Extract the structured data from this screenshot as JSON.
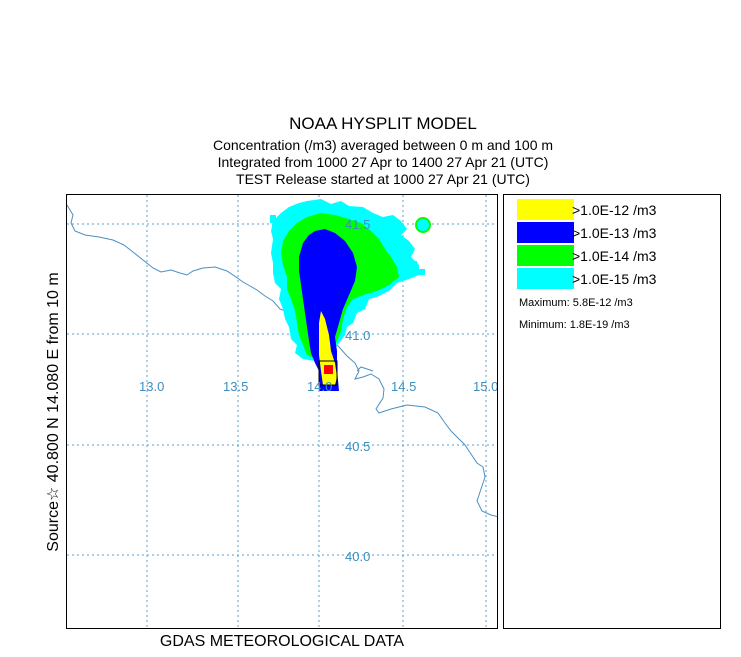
{
  "header": {
    "title": "NOAA HYSPLIT MODEL",
    "line1": "Concentration  (/m3) averaged between     0 m and   100 m",
    "line2": "Integrated from 1000 27 Apr to 1400 27 Apr 21 (UTC)",
    "line3": "TEST Release started at 1000 27 Apr 21 (UTC)"
  },
  "map": {
    "source_label": "Source☆  40.800  N  14.080  E   from   10 m",
    "footer": "GDAS METEOROLOGICAL DATA",
    "lon_labels": [
      "13.0",
      "13.5",
      "14.0",
      "14.5",
      "15.0"
    ],
    "lat_labels": [
      "41.5",
      "41.0",
      "40.5",
      "40.0"
    ],
    "colors": {
      "grid": "#5aa0cc",
      "coast": "#4a8fc2",
      "level1": "#ffff00",
      "level2": "#0000ff",
      "level3": "#00ff00",
      "level4": "#00ffff",
      "source_marker": "#ff0000"
    }
  },
  "legend": {
    "items": [
      {
        "label": ">1.0E-12 /m3",
        "color": "#ffff00"
      },
      {
        "label": ">1.0E-13 /m3",
        "color": "#0000ff"
      },
      {
        "label": ">1.0E-14 /m3",
        "color": "#00ff00"
      },
      {
        "label": ">1.0E-15 /m3",
        "color": "#00ffff"
      }
    ],
    "maximum": "Maximum: 5.8E-12 /m3",
    "minimum": "Minimum: 1.8E-19 /m3"
  }
}
